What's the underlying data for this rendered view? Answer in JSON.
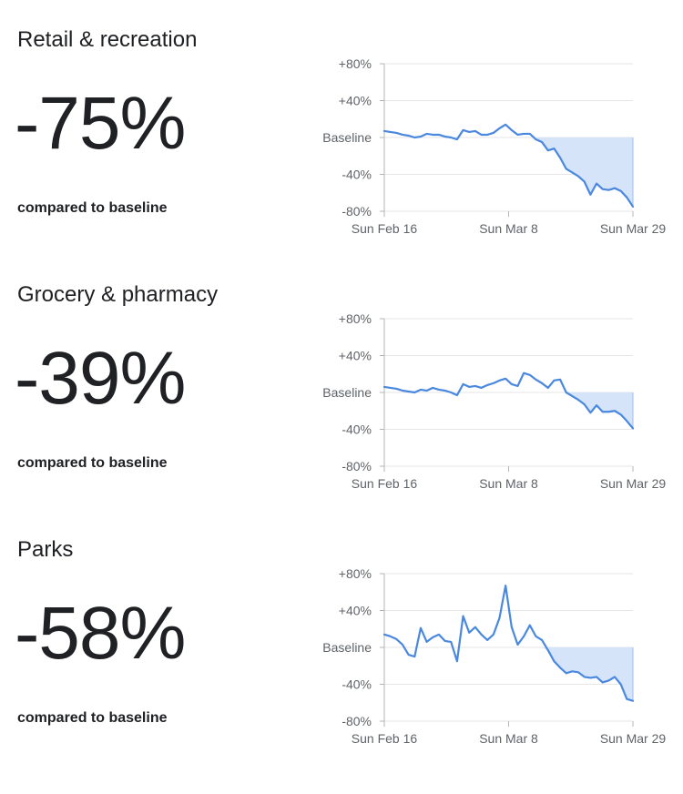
{
  "colors": {
    "line": "#4a88df",
    "fill": "#d6e4fa",
    "grid": "#e6e6e6",
    "axis": "#b5b5b5",
    "text": "#5f6368"
  },
  "chart_data": [
    {
      "type": "line",
      "title": "Retail & recreation",
      "headline_value": "-75%",
      "comparison_label": "compared to baseline",
      "yticks": [
        80,
        40,
        0,
        -40,
        -80
      ],
      "ytick_labels": [
        "+80%",
        "+40%",
        "Baseline",
        "-40%",
        "-80%"
      ],
      "xtick_labels": [
        "Sun Feb 16",
        "Sun Mar 8",
        "Sun Mar 29"
      ],
      "ylim": [
        -80,
        80
      ],
      "grid": true,
      "legend": "none",
      "shaded_below_baseline": true,
      "series": [
        {
          "values": [
            7,
            6,
            5,
            3,
            2,
            0,
            1,
            4,
            3,
            3,
            1,
            0,
            -2,
            8,
            6,
            7,
            3,
            3,
            5,
            10,
            14,
            8,
            3,
            4,
            4,
            -2,
            -5,
            -14,
            -12,
            -22,
            -34,
            -38,
            -42,
            -48,
            -62,
            -50,
            -56,
            -57,
            -55,
            -58,
            -65,
            -75
          ]
        }
      ]
    },
    {
      "type": "line",
      "title": "Grocery & pharmacy",
      "headline_value": "-39%",
      "comparison_label": "compared to baseline",
      "yticks": [
        80,
        40,
        0,
        -40,
        -80
      ],
      "ytick_labels": [
        "+80%",
        "+40%",
        "Baseline",
        "-40%",
        "-80%"
      ],
      "xtick_labels": [
        "Sun Feb 16",
        "Sun Mar 8",
        "Sun Mar 29"
      ],
      "ylim": [
        -80,
        80
      ],
      "grid": true,
      "legend": "none",
      "shaded_below_baseline": true,
      "series": [
        {
          "values": [
            6,
            5,
            4,
            2,
            1,
            0,
            3,
            2,
            5,
            3,
            2,
            0,
            -3,
            9,
            6,
            7,
            5,
            8,
            10,
            13,
            15,
            9,
            7,
            21,
            19,
            14,
            10,
            5,
            13,
            14,
            0,
            -4,
            -8,
            -13,
            -22,
            -14,
            -21,
            -21,
            -20,
            -24,
            -31,
            -39
          ]
        }
      ]
    },
    {
      "type": "line",
      "title": "Parks",
      "headline_value": "-58%",
      "comparison_label": "compared to baseline",
      "yticks": [
        80,
        40,
        0,
        -40,
        -80
      ],
      "ytick_labels": [
        "+80%",
        "+40%",
        "Baseline",
        "-40%",
        "-80%"
      ],
      "xtick_labels": [
        "Sun Feb 16",
        "Sun Mar 8",
        "Sun Mar 29"
      ],
      "ylim": [
        -80,
        80
      ],
      "grid": true,
      "legend": "none",
      "shaded_below_baseline": true,
      "series": [
        {
          "values": [
            14,
            12,
            9,
            3,
            -8,
            -10,
            21,
            6,
            11,
            14,
            7,
            6,
            -15,
            34,
            16,
            22,
            14,
            8,
            14,
            32,
            67,
            22,
            3,
            12,
            24,
            12,
            8,
            -3,
            -15,
            -22,
            -28,
            -26,
            -27,
            -32,
            -33,
            -32,
            -38,
            -36,
            -32,
            -40,
            -56,
            -58
          ]
        }
      ]
    }
  ]
}
